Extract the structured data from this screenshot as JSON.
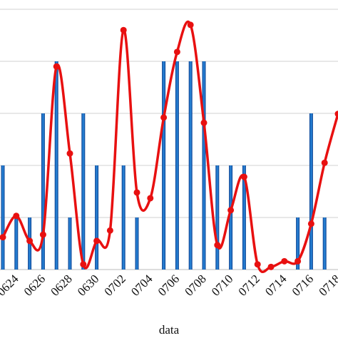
{
  "chart_data": {
    "type": "bar-line",
    "x_label": "data",
    "categories": [
      null,
      "0624",
      null,
      "0626",
      null,
      "0628",
      null,
      "0630",
      null,
      "0702",
      null,
      "0704",
      null,
      "0706",
      null,
      "0708",
      null,
      "0710",
      null,
      "0712",
      null,
      "0714",
      null,
      "0716",
      null,
      "0718"
    ],
    "series": [
      {
        "type": "bar",
        "color": "#1565c0",
        "values": [
          2,
          1,
          1,
          3,
          4,
          1,
          3,
          2,
          0,
          2,
          1,
          0,
          4,
          4,
          4,
          4,
          2,
          2,
          2,
          0,
          0,
          0,
          1,
          3,
          1,
          0
        ]
      },
      {
        "type": "line",
        "color": "#e81010",
        "values": [
          0.62,
          1.03,
          0.55,
          0.67,
          3.9,
          2.23,
          0.1,
          0.55,
          0.75,
          4.6,
          1.48,
          1.37,
          2.92,
          4.18,
          4.7,
          2.82,
          0.47,
          1.14,
          1.78,
          0.1,
          0.05,
          0.16,
          0.16,
          0.88,
          2.05,
          2.99
        ]
      }
    ],
    "ylim": [
      0,
      5
    ],
    "yticks": [
      0,
      1,
      2,
      3,
      4,
      5
    ],
    "grid": true
  }
}
